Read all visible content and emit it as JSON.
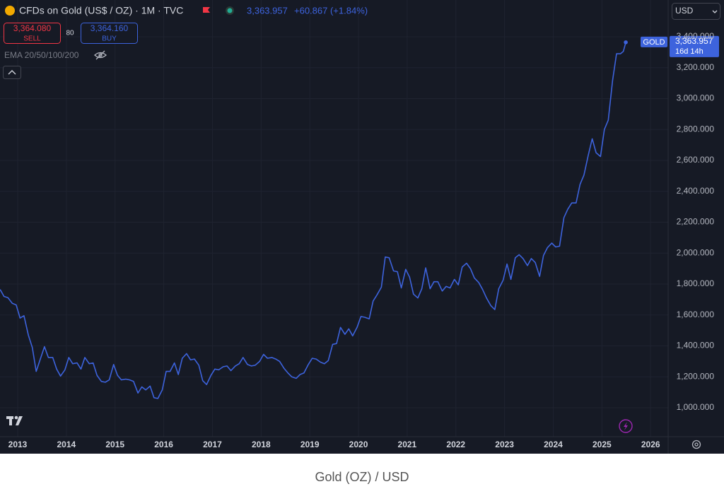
{
  "header": {
    "symbol": "CFDs on Gold (US$ / OZ) · 1M · TVC",
    "price": "3,363.957",
    "change": "+60.867 (+1.84%)",
    "sell_price": "3,364.080",
    "sell": "SELL",
    "spread": "80",
    "buy_price": "3,364.160",
    "buy": "BUY",
    "indicator": "EMA 20/50/100/200",
    "currency": "USD",
    "countdown": "16d 14h"
  },
  "chart_data": {
    "type": "line",
    "title": "Gold (OZ) / USD",
    "x": [
      2012.64,
      2012.72,
      2012.8,
      2012.89,
      2012.97,
      2013.05,
      2013.13,
      2013.22,
      2013.3,
      2013.38,
      2013.47,
      2013.55,
      2013.63,
      2013.72,
      2013.8,
      2013.88,
      2013.97,
      2014.05,
      2014.13,
      2014.22,
      2014.3,
      2014.38,
      2014.47,
      2014.55,
      2014.63,
      2014.72,
      2014.8,
      2014.88,
      2014.97,
      2015.05,
      2015.13,
      2015.22,
      2015.3,
      2015.38,
      2015.47,
      2015.55,
      2015.63,
      2015.72,
      2015.8,
      2015.88,
      2015.97,
      2016.05,
      2016.13,
      2016.22,
      2016.3,
      2016.38,
      2016.47,
      2016.55,
      2016.63,
      2016.72,
      2016.8,
      2016.88,
      2016.97,
      2017.05,
      2017.13,
      2017.22,
      2017.3,
      2017.38,
      2017.47,
      2017.55,
      2017.63,
      2017.72,
      2017.8,
      2017.88,
      2017.97,
      2018.05,
      2018.13,
      2018.22,
      2018.3,
      2018.38,
      2018.47,
      2018.55,
      2018.63,
      2018.72,
      2018.8,
      2018.88,
      2018.97,
      2019.05,
      2019.13,
      2019.22,
      2019.3,
      2019.38,
      2019.47,
      2019.55,
      2019.63,
      2019.72,
      2019.8,
      2019.88,
      2019.97,
      2020.05,
      2020.13,
      2020.22,
      2020.3,
      2020.38,
      2020.47,
      2020.55,
      2020.63,
      2020.72,
      2020.8,
      2020.88,
      2020.97,
      2021.05,
      2021.13,
      2021.22,
      2021.3,
      2021.38,
      2021.47,
      2021.55,
      2021.63,
      2021.72,
      2021.8,
      2021.88,
      2021.97,
      2022.05,
      2022.13,
      2022.22,
      2022.3,
      2022.38,
      2022.47,
      2022.55,
      2022.63,
      2022.72,
      2022.8,
      2022.88,
      2022.97,
      2023.05,
      2023.13,
      2023.22,
      2023.3,
      2023.38,
      2023.47,
      2023.55,
      2023.63,
      2023.72,
      2023.8,
      2023.88,
      2023.97,
      2024.05,
      2024.13,
      2024.22,
      2024.3,
      2024.38,
      2024.47,
      2024.55,
      2024.63,
      2024.72,
      2024.8,
      2024.88,
      2024.97,
      2025.05,
      2025.13,
      2025.22,
      2025.3,
      2025.38,
      2025.44,
      2025.49
    ],
    "series": [
      {
        "name": "GOLD",
        "color": "#3d63dd",
        "values": [
          1765,
          1720,
          1712,
          1675,
          1665,
          1580,
          1595,
          1470,
          1390,
          1235,
          1320,
          1395,
          1325,
          1325,
          1250,
          1205,
          1245,
          1325,
          1285,
          1290,
          1250,
          1325,
          1285,
          1290,
          1210,
          1170,
          1165,
          1180,
          1280,
          1210,
          1180,
          1185,
          1180,
          1170,
          1095,
          1135,
          1115,
          1140,
          1065,
          1060,
          1115,
          1235,
          1235,
          1290,
          1215,
          1320,
          1350,
          1310,
          1315,
          1275,
          1175,
          1150,
          1210,
          1250,
          1245,
          1265,
          1270,
          1240,
          1270,
          1285,
          1325,
          1280,
          1270,
          1275,
          1300,
          1345,
          1320,
          1325,
          1315,
          1300,
          1255,
          1225,
          1200,
          1190,
          1215,
          1225,
          1280,
          1320,
          1315,
          1295,
          1285,
          1305,
          1410,
          1415,
          1520,
          1475,
          1510,
          1465,
          1520,
          1590,
          1585,
          1575,
          1690,
          1730,
          1780,
          1975,
          1970,
          1885,
          1880,
          1775,
          1895,
          1845,
          1735,
          1710,
          1770,
          1905,
          1770,
          1815,
          1815,
          1755,
          1785,
          1775,
          1830,
          1795,
          1910,
          1935,
          1900,
          1840,
          1810,
          1765,
          1710,
          1660,
          1635,
          1770,
          1825,
          1930,
          1830,
          1970,
          1990,
          1965,
          1920,
          1965,
          1940,
          1850,
          1985,
          2035,
          2065,
          2040,
          2045,
          2230,
          2285,
          2325,
          2325,
          2445,
          2505,
          2635,
          2740,
          2650,
          2625,
          2800,
          2860,
          3120,
          3290,
          3290,
          3305,
          3363.957
        ]
      }
    ],
    "value_labels": {
      "last": "3,363.957"
    },
    "xlim": [
      2012.637,
      2026.36
    ],
    "xticks": [
      2013,
      2014,
      2015,
      2016,
      2017,
      2018,
      2019,
      2020,
      2021,
      2022,
      2023,
      2024,
      2025,
      2026
    ],
    "ylim": [
      812.6,
      3637.7
    ],
    "yticks": [
      {
        "value": 1000,
        "label": "1,000.000"
      },
      {
        "value": 1200,
        "label": "1,200.000"
      },
      {
        "value": 1400,
        "label": "1,400.000"
      },
      {
        "value": 1600,
        "label": "1,600.000"
      },
      {
        "value": 1800,
        "label": "1,800.000"
      },
      {
        "value": 2000,
        "label": "2,000.000"
      },
      {
        "value": 2200,
        "label": "2,200.000"
      },
      {
        "value": 2400,
        "label": "2,400.000"
      },
      {
        "value": 2600,
        "label": "2,600.000"
      },
      {
        "value": 2800,
        "label": "2,800.000"
      },
      {
        "value": 3000,
        "label": "3,000.000"
      },
      {
        "value": 3200,
        "label": "3,200.000"
      },
      {
        "value": 3400,
        "label": "3,400.000"
      }
    ],
    "grid": true
  }
}
